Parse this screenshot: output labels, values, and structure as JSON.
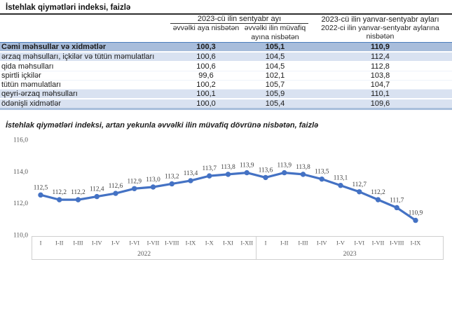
{
  "doc": {
    "table_title": "İstehlak qiymətləri indeksi, faizlə"
  },
  "table": {
    "col_groups": [
      {
        "label": "2023-cü ilin sentyabr ayı"
      },
      {
        "label": "2023-cü ilin yanvar-sentyabr ayları"
      }
    ],
    "sub_headers": [
      "əvvəlki aya nisbətən",
      "əvvəlki ilin müvafiq ayına nisbətən",
      "2022-ci ilin yanvar-sentyabr aylarına nisbətən"
    ],
    "rows": [
      {
        "label": "Cəmi məhsullar və xidmətlər",
        "values": [
          "100,3",
          "105,1",
          "110,9"
        ],
        "style": "total",
        "indent": 0
      },
      {
        "label": "ərzaq məhsulları, içkilər və tütün məmulatları",
        "values": [
          "100,6",
          "104,5",
          "112,4"
        ],
        "style": "shaded",
        "indent": 1
      },
      {
        "label": "qida məhsulları",
        "values": [
          "100,6",
          "104,5",
          "112,8"
        ],
        "style": "plain",
        "indent": 2
      },
      {
        "label": "spirtli içkilər",
        "values": [
          "99,6",
          "102,1",
          "103,8"
        ],
        "style": "plain",
        "indent": 2
      },
      {
        "label": "tütün məmulatları",
        "values": [
          "100,2",
          "105,7",
          "104,7"
        ],
        "style": "plain",
        "indent": 2
      },
      {
        "label": "qeyri-ərzaq məhsulları",
        "values": [
          "100,1",
          "105,9",
          "110,1"
        ],
        "style": "shaded",
        "indent": 1
      },
      {
        "label": "ödənişli xidmətlər",
        "values": [
          "100,0",
          "105,4",
          "109,6"
        ],
        "style": "shaded",
        "indent": 1
      }
    ]
  },
  "chart_data": {
    "type": "line",
    "title": "İstehlak qiymətləri indeksi, artan yekunla əvvəlki ilin müvafiq dövrünə nisbətən, faizlə",
    "categories": [
      "I",
      "I-II",
      "I-III",
      "I-IV",
      "I-V",
      "I-VI",
      "I-VII",
      "I-VIII",
      "I-IX",
      "I-X",
      "I-XI",
      "I-XII",
      "I",
      "I-II",
      "I-III",
      "I-IV",
      "I-V",
      "I-VI",
      "I-VII",
      "I-VIII",
      "I-IX"
    ],
    "year_groups": [
      {
        "label": "2022",
        "count": 12
      },
      {
        "label": "2023",
        "count": 9
      }
    ],
    "values": [
      112.5,
      112.2,
      112.2,
      112.4,
      112.6,
      112.9,
      113.0,
      113.2,
      113.4,
      113.7,
      113.8,
      113.9,
      113.6,
      113.9,
      113.8,
      113.5,
      113.1,
      112.7,
      112.2,
      111.7,
      110.9
    ],
    "point_labels": [
      "112,5",
      "112,2",
      "112,2",
      "112,4",
      "112,6",
      "112,9",
      "113,0",
      "113,2",
      "113,4",
      "113,7",
      "113,8",
      "113,9",
      "113,6",
      "113,9",
      "113,8",
      "113,5",
      "113,1",
      "112,7",
      "112,2",
      "111,7",
      "110,9"
    ],
    "yticks": [
      "110,0",
      "112,0",
      "114,0",
      "116,0"
    ],
    "ylim": [
      110.0,
      116.0
    ],
    "xlabel": "",
    "ylabel": "",
    "grid": false,
    "legend": "none",
    "line_color": "#4472C4",
    "label_color": "#3f3f3f",
    "axis_color": "#595959"
  }
}
